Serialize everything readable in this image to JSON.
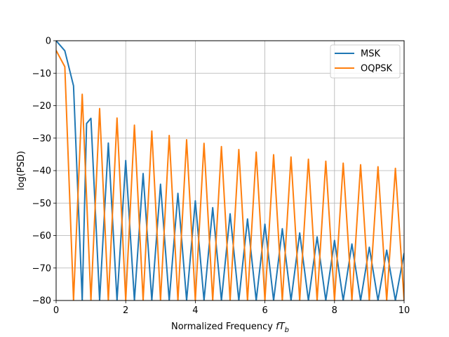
{
  "chart_data": {
    "type": "line",
    "title": "",
    "xlabel": "Normalized Frequency ",
    "xlabel_math_base": "fT",
    "xlabel_math_sub": "b",
    "ylabel": "log(PSD)",
    "xlim": [
      0,
      10
    ],
    "ylim": [
      -80,
      0
    ],
    "xticks": [
      0,
      2,
      4,
      6,
      8,
      10
    ],
    "yticks": [
      0,
      -10,
      -20,
      -30,
      -40,
      -50,
      -60,
      -70,
      -80
    ],
    "xtick_labels": [
      "0",
      "2",
      "4",
      "6",
      "8",
      "10"
    ],
    "ytick_labels": [
      "0",
      "−10",
      "−20",
      "−30",
      "−40",
      "−50",
      "−60",
      "−70",
      "−80"
    ],
    "grid": true,
    "legend_position": "upper right",
    "series": [
      {
        "name": "MSK",
        "color": "#1f77b4",
        "x": [
          0,
          0.25,
          0.5,
          0.75,
          0.875,
          1.0,
          1.25,
          1.5,
          1.75,
          2.0,
          2.25,
          2.5,
          2.75,
          3.0,
          3.25,
          3.5,
          3.75,
          4.0,
          4.25,
          4.5,
          4.75,
          5.0,
          5.25,
          5.5,
          5.75,
          6.0,
          6.25,
          6.5,
          6.75,
          7.0,
          7.25,
          7.5,
          7.75,
          8.0,
          8.25,
          8.5,
          8.75,
          9.0,
          9.25,
          9.5,
          9.75,
          10.0
        ],
        "values": [
          0,
          -3.1,
          -13.9,
          -80,
          -25.5,
          -23.9,
          -80,
          -31.5,
          -80,
          -36.9,
          -80,
          -40.9,
          -80,
          -44.2,
          -80,
          -47.0,
          -80,
          -49.3,
          -80,
          -51.4,
          -80,
          -53.3,
          -80,
          -54.9,
          -80,
          -56.5,
          -80,
          -57.9,
          -80,
          -59.2,
          -80,
          -60.4,
          -80,
          -61.5,
          -80,
          -62.6,
          -80,
          -63.6,
          -80,
          -64.5,
          -80,
          -65.4
        ]
      },
      {
        "name": "OQPSK",
        "color": "#ff7f0e",
        "x": [
          0,
          0.25,
          0.5,
          0.75,
          1.0,
          1.25,
          1.5,
          1.75,
          2.0,
          2.25,
          2.5,
          2.75,
          3.0,
          3.25,
          3.5,
          3.75,
          4.0,
          4.25,
          4.5,
          4.75,
          5.0,
          5.25,
          5.5,
          5.75,
          6.0,
          6.25,
          6.5,
          6.75,
          7.0,
          7.25,
          7.5,
          7.75,
          8.0,
          8.25,
          8.5,
          8.75,
          9.0,
          9.25,
          9.5,
          9.75,
          10.0
        ],
        "values": [
          -3.0,
          -8.0,
          -80,
          -16.5,
          -80,
          -20.9,
          -80,
          -23.8,
          -80,
          -26.0,
          -80,
          -27.8,
          -80,
          -29.2,
          -80,
          -30.5,
          -80,
          -31.6,
          -80,
          -32.6,
          -80,
          -33.5,
          -80,
          -34.3,
          -80,
          -35.1,
          -80,
          -35.8,
          -80,
          -36.5,
          -80,
          -37.1,
          -80,
          -37.7,
          -80,
          -38.2,
          -80,
          -38.8,
          -80,
          -39.3,
          -80
        ]
      }
    ]
  }
}
